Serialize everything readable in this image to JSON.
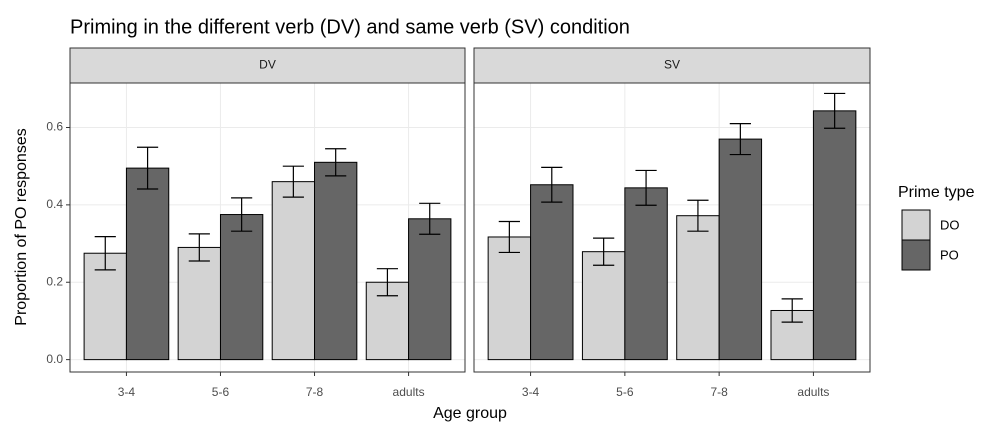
{
  "chart_data": {
    "type": "bar",
    "title": "Priming in the different verb (DV) and same verb (SV) condition",
    "x_label": "Age group",
    "y_label": "Proportion of PO responses",
    "legend_title": "Prime type",
    "facets": [
      "DV",
      "SV"
    ],
    "categories": [
      "3-4",
      "5-6",
      "7-8",
      "adults"
    ],
    "series": [
      {
        "name": "DO",
        "color": "#d3d3d3",
        "values": [
          [
            0.275,
            0.29,
            0.46,
            0.2
          ],
          [
            0.317,
            0.279,
            0.372,
            0.127
          ]
        ],
        "errors": [
          [
            0.043,
            0.035,
            0.04,
            0.035
          ],
          [
            0.04,
            0.035,
            0.04,
            0.03
          ]
        ]
      },
      {
        "name": "PO",
        "color": "#666666",
        "values": [
          [
            0.495,
            0.375,
            0.51,
            0.364
          ],
          [
            0.452,
            0.444,
            0.57,
            0.643
          ]
        ],
        "errors": [
          [
            0.054,
            0.043,
            0.035,
            0.04
          ],
          [
            0.045,
            0.045,
            0.04,
            0.045
          ]
        ]
      }
    ],
    "ylim": [
      -0.032,
      0.715
    ],
    "yticks": [
      {
        "value": 0,
        "label": "0.0"
      },
      0.2,
      0.4,
      0.6
    ],
    "grid": true
  }
}
